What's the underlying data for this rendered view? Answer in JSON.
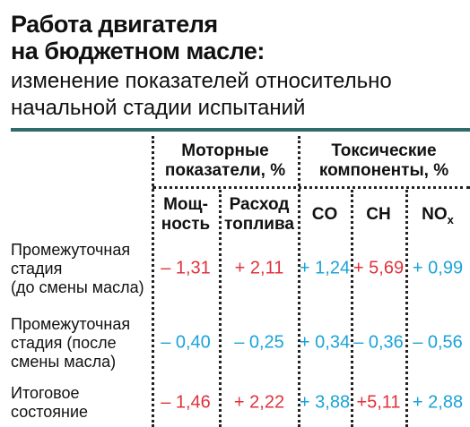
{
  "header": {
    "title": [
      "Работа двигателя",
      "на бюджетном масле:"
    ],
    "subtitle": [
      "изменение показателей относительно",
      "начальной стадии испытаний"
    ]
  },
  "table": {
    "groups": [
      [
        "Моторные",
        "показатели, %"
      ],
      [
        "Токсические",
        "компоненты, %"
      ]
    ],
    "columns": [
      {
        "lines": [
          "Мощ-",
          "ность"
        ]
      },
      {
        "lines": [
          "Расход",
          "топлива"
        ]
      },
      {
        "lines": [
          "CO"
        ]
      },
      {
        "lines": [
          "CH"
        ]
      },
      {
        "lines": [
          "NO"
        ],
        "sub": "x"
      }
    ],
    "rows": [
      {
        "label": [
          "Промежуточная",
          "стадия",
          "(до смены масла)"
        ],
        "cells": [
          {
            "text": "– 1,31",
            "color": "#e0313b"
          },
          {
            "text": "+ 2,11",
            "color": "#e0313b"
          },
          {
            "text": "+ 1,24",
            "color": "#1aa3d9"
          },
          {
            "text": "+ 5,69",
            "color": "#e0313b"
          },
          {
            "text": "+ 0,99",
            "color": "#1aa3d9"
          }
        ]
      },
      {
        "label": [
          "Промежуточная",
          "стадия (после",
          "смены масла)"
        ],
        "cells": [
          {
            "text": "– 0,40",
            "color": "#1aa3d9"
          },
          {
            "text": "– 0,25",
            "color": "#1aa3d9"
          },
          {
            "text": "+ 0,34",
            "color": "#1aa3d9"
          },
          {
            "text": "– 0,36",
            "color": "#1aa3d9"
          },
          {
            "text": "– 0,56",
            "color": "#1aa3d9"
          }
        ]
      },
      {
        "label": [
          "Итоговое",
          "состояние"
        ],
        "cells": [
          {
            "text": "– 1,46",
            "color": "#e0313b"
          },
          {
            "text": "+ 2,22",
            "color": "#e0313b"
          },
          {
            "text": "+ 3,88",
            "color": "#1aa3d9"
          },
          {
            "text": "+5,11",
            "color": "#e0313b"
          },
          {
            "text": "+ 2,88",
            "color": "#1aa3d9"
          }
        ]
      }
    ]
  }
}
